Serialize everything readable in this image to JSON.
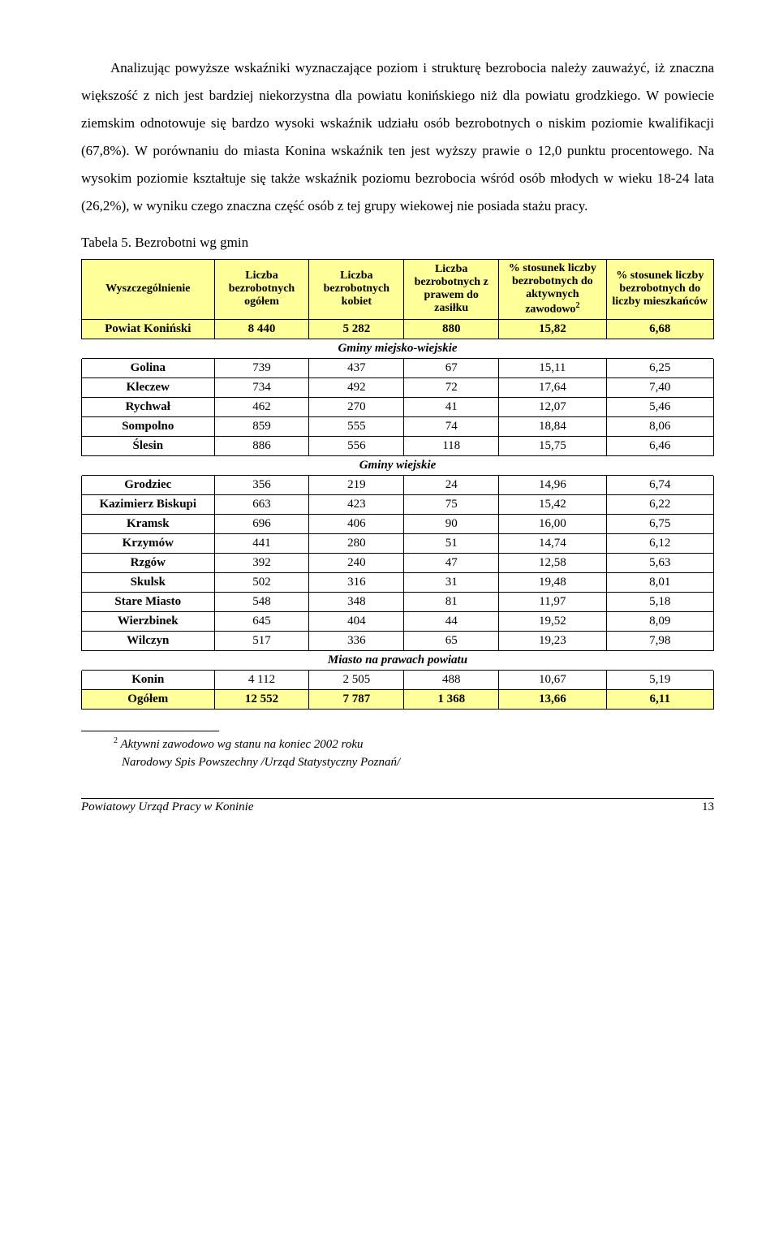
{
  "paragraph": "Analizując powyższe wskaźniki  wyznaczające poziom i strukturę bezrobocia należy zauważyć, iż znaczna większość z nich jest bardziej niekorzystna dla powiatu konińskiego niż dla powiatu grodzkiego. W powiecie ziemskim odnotowuje się bardzo wysoki wskaźnik udziału osób bezrobotnych o niskim poziomie kwalifikacji (67,8%). W porównaniu do miasta Konina wskaźnik ten jest wyższy prawie o 12,0 punktu procentowego. Na wysokim poziomie kształtuje się także wskaźnik poziomu bezrobocia wśród osób młodych w wieku 18-24 lata (26,2%), w wyniku czego znaczna część osób z tej grupy wiekowej nie posiada stażu pracy.",
  "table_caption": "Tabela 5. Bezrobotni wg gmin",
  "columns": {
    "c0": "Wyszczególnienie",
    "c1": "Liczba bezrobotnych ogółem",
    "c2": "Liczba bezrobotnych kobiet",
    "c3": "Liczba bezrobotnych z prawem do zasiłku",
    "c4_pre": "% stosunek liczby bezrobotnych do aktywnych zawodowo",
    "c4_sup": "2",
    "c5": "% stosunek liczby bezrobotnych do liczby mieszkańców"
  },
  "highlight_color": "#ffff99",
  "row_powiat": {
    "name": "Powiat Koniński",
    "v1": "8 440",
    "v2": "5 282",
    "v3": "880",
    "v4": "15,82",
    "v5": "6,68"
  },
  "section1": "Gminy miejsko-wiejskie",
  "rows1": [
    {
      "name": "Golina",
      "v1": "739",
      "v2": "437",
      "v3": "67",
      "v4": "15,11",
      "v5": "6,25"
    },
    {
      "name": "Kleczew",
      "v1": "734",
      "v2": "492",
      "v3": "72",
      "v4": "17,64",
      "v5": "7,40"
    },
    {
      "name": "Rychwał",
      "v1": "462",
      "v2": "270",
      "v3": "41",
      "v4": "12,07",
      "v5": "5,46"
    },
    {
      "name": "Sompolno",
      "v1": "859",
      "v2": "555",
      "v3": "74",
      "v4": "18,84",
      "v5": "8,06"
    },
    {
      "name": "Ślesin",
      "v1": "886",
      "v2": "556",
      "v3": "118",
      "v4": "15,75",
      "v5": "6,46"
    }
  ],
  "section2": "Gminy wiejskie",
  "rows2": [
    {
      "name": "Grodziec",
      "v1": "356",
      "v2": "219",
      "v3": "24",
      "v4": "14,96",
      "v5": "6,74"
    },
    {
      "name": "Kazimierz Biskupi",
      "v1": "663",
      "v2": "423",
      "v3": "75",
      "v4": "15,42",
      "v5": "6,22"
    },
    {
      "name": "Kramsk",
      "v1": "696",
      "v2": "406",
      "v3": "90",
      "v4": "16,00",
      "v5": "6,75"
    },
    {
      "name": "Krzymów",
      "v1": "441",
      "v2": "280",
      "v3": "51",
      "v4": "14,74",
      "v5": "6,12"
    },
    {
      "name": "Rzgów",
      "v1": "392",
      "v2": "240",
      "v3": "47",
      "v4": "12,58",
      "v5": "5,63"
    },
    {
      "name": "Skulsk",
      "v1": "502",
      "v2": "316",
      "v3": "31",
      "v4": "19,48",
      "v5": "8,01"
    },
    {
      "name": "Stare Miasto",
      "v1": "548",
      "v2": "348",
      "v3": "81",
      "v4": "11,97",
      "v5": "5,18"
    },
    {
      "name": "Wierzbinek",
      "v1": "645",
      "v2": "404",
      "v3": "44",
      "v4": "19,52",
      "v5": "8,09"
    },
    {
      "name": "Wilczyn",
      "v1": "517",
      "v2": "336",
      "v3": "65",
      "v4": "19,23",
      "v5": "7,98"
    }
  ],
  "section3": "Miasto na prawach powiatu",
  "row_konin": {
    "name": "Konin",
    "v1": "4 112",
    "v2": "2 505",
    "v3": "488",
    "v4": "10,67",
    "v5": "5,19"
  },
  "row_total": {
    "name": "Ogółem",
    "v1": "12 552",
    "v2": "7 787",
    "v3": "1 368",
    "v4": "13,66",
    "v5": "6,11"
  },
  "footnote": {
    "marker": "2",
    "line1": " Aktywni zawodowo wg stanu na koniec 2002 roku",
    "line2": "Narodowy Spis Powszechny /Urząd Statystyczny Poznań/"
  },
  "footer": {
    "left": "Powiatowy Urząd Pracy w Koninie",
    "page": "13"
  }
}
